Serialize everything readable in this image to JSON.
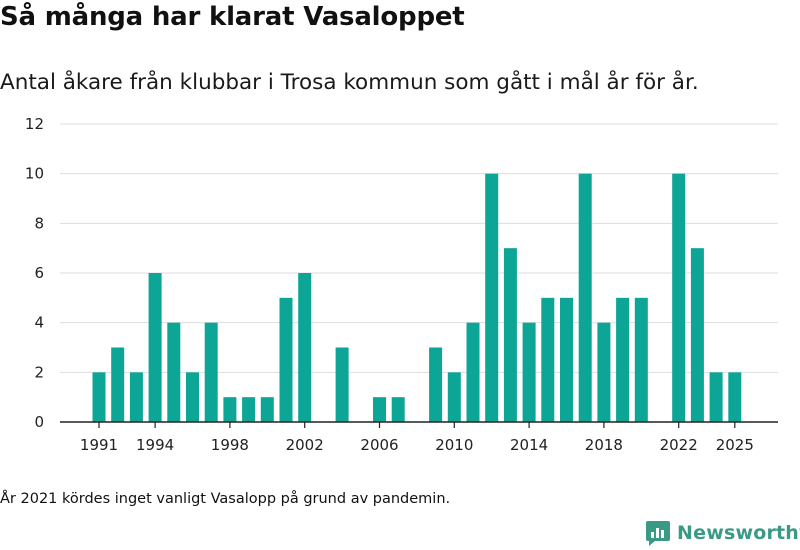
{
  "header": {
    "title": "Så många har klarat Vasaloppet",
    "subtitle": "Antal åkare från klubbar i Trosa kommun som gått i mål år för år."
  },
  "footer": {
    "note": "År 2021 kördes inget vanligt Vasalopp på grund av pandemin.",
    "brand": "Newsworthy"
  },
  "colors": {
    "bar": "#0ca596",
    "grid": "#dddddd",
    "axis": "#222222",
    "brand": "#3a9a86"
  },
  "icons": {
    "brand_logo": "newsworthy-logo-icon"
  },
  "chart_data": {
    "type": "bar",
    "title": "Så många har klarat Vasaloppet",
    "subtitle": "Antal åkare från klubbar i Trosa kommun som gått i mål år för år.",
    "xlabel": "",
    "ylabel": "",
    "ylim": [
      0,
      12
    ],
    "yticks": [
      0,
      2,
      4,
      6,
      8,
      10,
      12
    ],
    "xticks": [
      1991,
      1994,
      1998,
      2002,
      2006,
      2010,
      2014,
      2018,
      2022,
      2025
    ],
    "grid": true,
    "categories": [
      1991,
      1992,
      1993,
      1994,
      1995,
      1996,
      1997,
      1998,
      1999,
      2000,
      2001,
      2002,
      2003,
      2004,
      2005,
      2006,
      2007,
      2008,
      2009,
      2010,
      2011,
      2012,
      2013,
      2014,
      2015,
      2016,
      2017,
      2018,
      2019,
      2020,
      2021,
      2022,
      2023,
      2024,
      2025
    ],
    "values": [
      2,
      3,
      2,
      6,
      4,
      2,
      4,
      1,
      1,
      1,
      5,
      6,
      0,
      3,
      0,
      1,
      1,
      0,
      3,
      2,
      4,
      10,
      7,
      4,
      5,
      5,
      10,
      4,
      5,
      5,
      0,
      10,
      7,
      2,
      2
    ]
  }
}
